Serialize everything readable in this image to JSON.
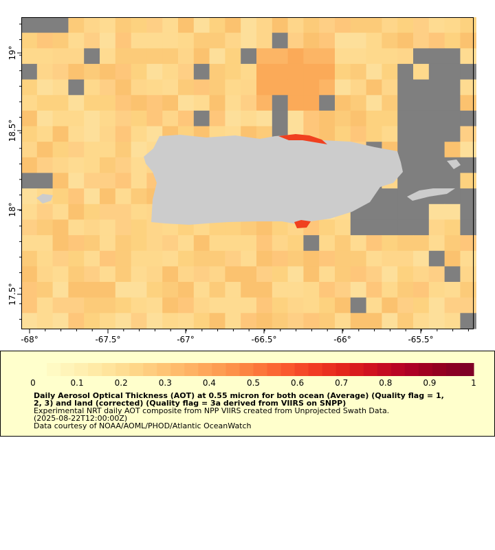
{
  "map": {
    "x_ticks": [
      "-68°",
      "-67.5°",
      "-67°",
      "-66.5°",
      "-66°",
      "-65.5°"
    ],
    "y_ticks": [
      "17.5°",
      "18°",
      "18.5°",
      "19°"
    ],
    "colors": {
      "no_data": "#7f7f7f",
      "land": "#cccccc",
      "frame": "#000000"
    }
  },
  "legend": {
    "tick_labels": [
      "0",
      "0.1",
      "0.2",
      "0.3",
      "0.4",
      "0.5",
      "0.6",
      "0.7",
      "0.8",
      "0.9",
      "1"
    ],
    "title": "Daily Aerosol Optical Thickness (AOT) at 0.55 micron for both ocean (Average) (Quality flag = 1,\n2, 3) and land (corrected) (Quality flag = 3a derived from VIIRS on SNPP)",
    "subtitle_1": "Experimental NRT daily AOT composite from NPP VIIRS created from Unprojected Swath Data.",
    "subtitle_2": "(2025-08-22T12:00:00Z)",
    "credit": "Data courtesy of NOAA/AOML/PHOD/Atlantic OceanWatch",
    "colors": [
      "#ffffcc",
      "#fff3b7",
      "#ffe8a2",
      "#fed98c",
      "#fec576",
      "#feb163",
      "#fd9a4f",
      "#fc7d3e",
      "#fb5c2f",
      "#f13c23",
      "#e2231c",
      "#cc0f20",
      "#b20026",
      "#96001f",
      "#800026"
    ]
  }
}
